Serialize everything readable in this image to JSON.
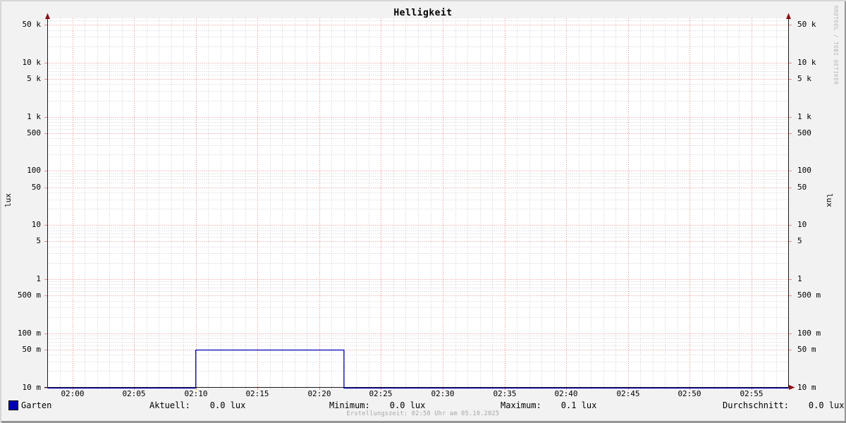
{
  "title": "Helligkeit",
  "y_axis_label": "lux",
  "watermark": "RRDTOOL / TOBI OETIKER",
  "footer": "Erstellungszeit: 02:58 Uhr am 05.10.2025",
  "colors": {
    "series": "#0000b3",
    "major_grid": "#e88a8a",
    "minor_grid": "#cfcfcf",
    "axis": "#1a1a1a",
    "arrow": "#8c1010",
    "canvas": "#ffffff",
    "background": "#f2f2f2"
  },
  "legend": {
    "series_label": "Garten",
    "series_color": "#0000b3",
    "stats": [
      {
        "label": "Aktuell:",
        "value": "0.0 lux"
      },
      {
        "label": "Minimum:",
        "value": "0.0 lux"
      },
      {
        "label": "Maximum:",
        "value": "0.1 lux"
      },
      {
        "label": "Durchschnitt:",
        "value": "0.0 lux"
      }
    ]
  },
  "chart_data": {
    "type": "line",
    "title": "Helligkeit",
    "ylabel": "lux",
    "y_scale": "log",
    "ylim": [
      0.01,
      66000
    ],
    "x_range": [
      "01:58",
      "02:58"
    ],
    "x_tick_minutes": 5,
    "x_minor_minutes": 1,
    "x_ticks": [
      "02:00",
      "02:05",
      "02:10",
      "02:15",
      "02:20",
      "02:25",
      "02:30",
      "02:35",
      "02:40",
      "02:45",
      "02:50",
      "02:55"
    ],
    "y_ticks": [
      {
        "value": 50000,
        "label": "50 k"
      },
      {
        "value": 10000,
        "label": "10 k"
      },
      {
        "value": 5000,
        "label": "5 k"
      },
      {
        "value": 1000,
        "label": "1 k"
      },
      {
        "value": 500,
        "label": "500"
      },
      {
        "value": 100,
        "label": "100"
      },
      {
        "value": 50,
        "label": "50"
      },
      {
        "value": 10,
        "label": "10"
      },
      {
        "value": 5,
        "label": "5"
      },
      {
        "value": 1,
        "label": "1"
      },
      {
        "value": 0.5,
        "label": "500 m"
      },
      {
        "value": 0.1,
        "label": "100 m"
      },
      {
        "value": 0.05,
        "label": "50 m"
      },
      {
        "value": 0.01,
        "label": "10 m"
      }
    ],
    "grid": "dotted",
    "legend_position": "bottom",
    "series": [
      {
        "name": "Garten",
        "color": "#0000b3",
        "steps": [
          {
            "from": "01:58",
            "to": "02:10",
            "value": 0.0
          },
          {
            "from": "02:10",
            "to": "02:22",
            "value": 0.05
          },
          {
            "from": "02:22",
            "to": "02:58",
            "value": 0.0
          }
        ]
      }
    ],
    "stats": {
      "aktuell": 0.0,
      "minimum": 0.0,
      "maximum": 0.1,
      "durchschnitt": 0.0,
      "unit": "lux"
    }
  }
}
